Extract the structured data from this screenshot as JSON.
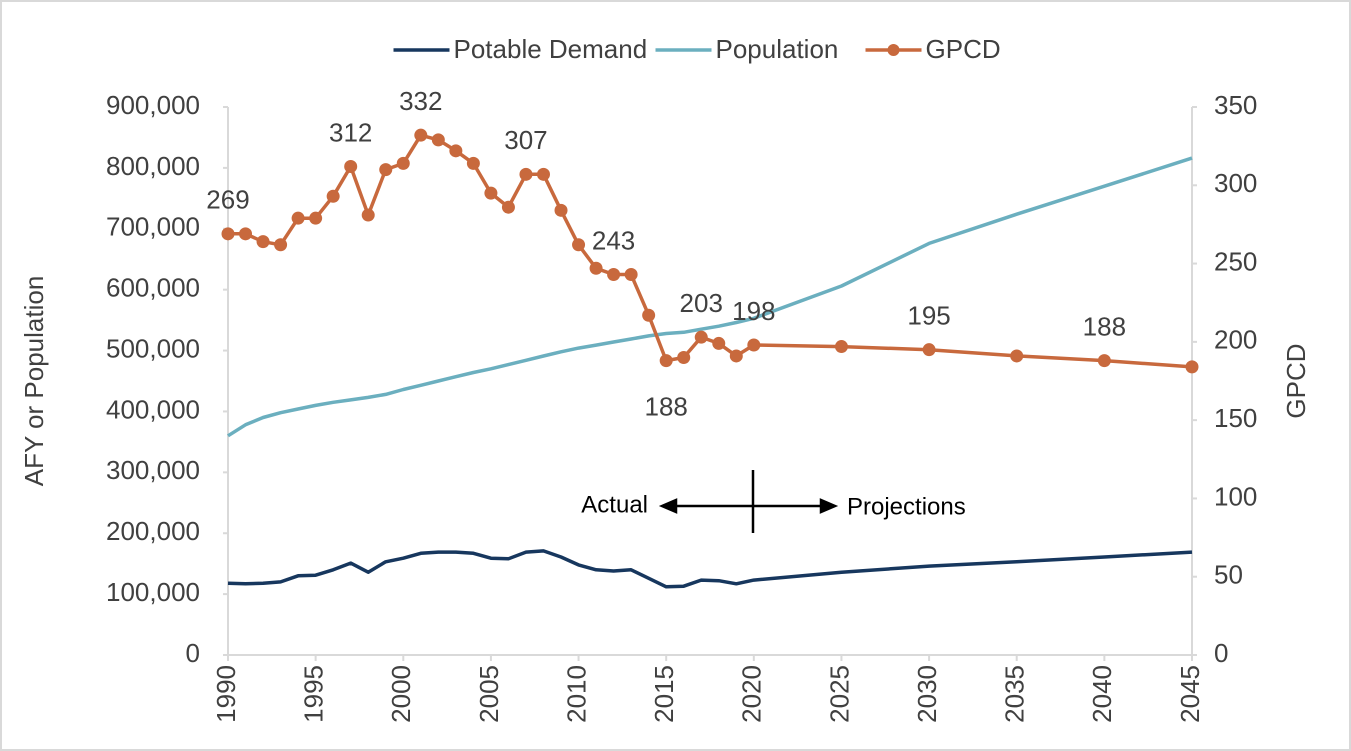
{
  "chart_data": {
    "type": "line",
    "y_label": "AFY or Population",
    "y2_label": "GPCD",
    "xlim": [
      1990,
      2045
    ],
    "xticks": [
      1990,
      1995,
      2000,
      2005,
      2010,
      2015,
      2020,
      2025,
      2030,
      2035,
      2040,
      2045
    ],
    "ylim": [
      0,
      900000
    ],
    "yticks": [
      0,
      {
        "value": 100000,
        "label": "100,000"
      },
      {
        "value": 200000,
        "label": "200,000"
      },
      {
        "value": 300000,
        "label": "300,000"
      },
      {
        "value": 400000,
        "label": "400,000"
      },
      {
        "value": 500000,
        "label": "500,000"
      },
      {
        "value": 600000,
        "label": "600,000"
      },
      {
        "value": 700000,
        "label": "700,000"
      },
      {
        "value": 800000,
        "label": "800,000"
      },
      {
        "value": 900000,
        "label": "900,000"
      }
    ],
    "y2lim": [
      0,
      350
    ],
    "y2ticks": [
      0,
      50,
      100,
      150,
      200,
      250,
      300,
      350
    ],
    "grid": false,
    "legend": "top",
    "annotations": [
      "Actual",
      "Projections"
    ],
    "series": [
      {
        "name": "Potable Demand",
        "color": "#17375e",
        "markers": false,
        "x": [
          1990,
          1991,
          1992,
          1993,
          1994,
          1995,
          1996,
          1997,
          1998,
          1999,
          2000,
          2001,
          2002,
          2003,
          2004,
          2005,
          2006,
          2007,
          2008,
          2009,
          2010,
          2011,
          2012,
          2013,
          2014,
          2015,
          2016,
          2017,
          2018,
          2019,
          2020,
          2025,
          2030,
          2035,
          2040,
          2045
        ],
        "values": [
          118000,
          117000,
          118000,
          120000,
          130000,
          131000,
          140000,
          151000,
          136000,
          153000,
          159000,
          167000,
          169000,
          169000,
          167000,
          159000,
          158000,
          169000,
          171000,
          161000,
          148000,
          140000,
          138000,
          140000,
          126000,
          112000,
          113000,
          123000,
          122000,
          117000,
          123000,
          136000,
          146000,
          153000,
          161000,
          169000
        ]
      },
      {
        "name": "Population",
        "color": "#6bafbf",
        "markers": false,
        "x": [
          1990,
          1991,
          1992,
          1993,
          1994,
          1995,
          1996,
          1997,
          1998,
          1999,
          2000,
          2001,
          2002,
          2003,
          2004,
          2005,
          2006,
          2007,
          2008,
          2009,
          2010,
          2011,
          2012,
          2013,
          2014,
          2015,
          2016,
          2017,
          2018,
          2019,
          2020,
          2025,
          2030,
          2035,
          2040,
          2045
        ],
        "values": [
          360000,
          378000,
          390000,
          398000,
          404000,
          410000,
          415000,
          419000,
          423000,
          428000,
          436000,
          443000,
          450000,
          457000,
          464000,
          470000,
          477000,
          484000,
          491000,
          498000,
          504000,
          509000,
          514000,
          519000,
          524000,
          528000,
          530000,
          535000,
          540000,
          546000,
          553000,
          606000,
          676000,
          724000,
          770000,
          816000
        ]
      },
      {
        "name": "GPCD",
        "color": "#c8693d",
        "markers": true,
        "axis": "y2",
        "x": [
          1990,
          1991,
          1992,
          1993,
          1994,
          1995,
          1996,
          1997,
          1998,
          1999,
          2000,
          2001,
          2002,
          2003,
          2004,
          2005,
          2006,
          2007,
          2008,
          2009,
          2010,
          2011,
          2012,
          2013,
          2014,
          2015,
          2016,
          2017,
          2018,
          2019,
          2020,
          2025,
          2030,
          2035,
          2040,
          2045
        ],
        "values": [
          269,
          269,
          264,
          262,
          279,
          279,
          293,
          312,
          281,
          310,
          314,
          332,
          329,
          322,
          314,
          295,
          286,
          307,
          307,
          284,
          262,
          247,
          243,
          243,
          217,
          188,
          190,
          203,
          199,
          191,
          198,
          197,
          195,
          191,
          188,
          184
        ],
        "value_labels": [
          269,
          null,
          null,
          null,
          null,
          null,
          null,
          312,
          null,
          null,
          null,
          332,
          null,
          null,
          null,
          null,
          null,
          307,
          null,
          null,
          null,
          null,
          243,
          null,
          null,
          188,
          null,
          203,
          null,
          null,
          198,
          null,
          195,
          null,
          188,
          null
        ]
      }
    ]
  }
}
